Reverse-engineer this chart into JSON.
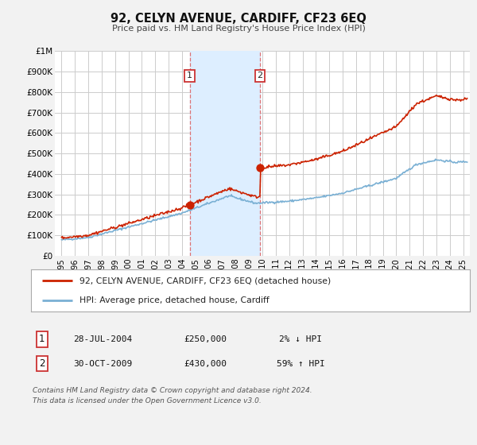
{
  "title": "92, CELYN AVENUE, CARDIFF, CF23 6EQ",
  "subtitle": "Price paid vs. HM Land Registry's House Price Index (HPI)",
  "bg_color": "#f2f2f2",
  "plot_bg_color": "#ffffff",
  "grid_color": "#cccccc",
  "hpi_line_color": "#7ab0d4",
  "price_line_color": "#cc2200",
  "marker_color": "#cc2200",
  "highlight_fill": "#ddeeff",
  "transaction1_x": 2004.57,
  "transaction1_y": 250000,
  "transaction2_x": 2009.83,
  "transaction2_y": 430000,
  "legend_line1": "92, CELYN AVENUE, CARDIFF, CF23 6EQ (detached house)",
  "legend_line2": "HPI: Average price, detached house, Cardiff",
  "table_row1": [
    "1",
    "28-JUL-2004",
    "£250,000",
    "2% ↓ HPI"
  ],
  "table_row2": [
    "2",
    "30-OCT-2009",
    "£430,000",
    "59% ↑ HPI"
  ],
  "footer": "Contains HM Land Registry data © Crown copyright and database right 2024.\nThis data is licensed under the Open Government Licence v3.0.",
  "ylim": [
    0,
    1000000
  ],
  "xlim_start": 1994.5,
  "xlim_end": 2025.5,
  "yticks": [
    0,
    100000,
    200000,
    300000,
    400000,
    500000,
    600000,
    700000,
    800000,
    900000,
    1000000
  ],
  "ytick_labels": [
    "£0",
    "£100K",
    "£200K",
    "£300K",
    "£400K",
    "£500K",
    "£600K",
    "£700K",
    "£800K",
    "£900K",
    "£1M"
  ],
  "xtick_years": [
    1995,
    1996,
    1997,
    1998,
    1999,
    2000,
    2001,
    2002,
    2003,
    2004,
    2005,
    2006,
    2007,
    2008,
    2009,
    2010,
    2011,
    2012,
    2013,
    2014,
    2015,
    2016,
    2017,
    2018,
    2019,
    2020,
    2021,
    2022,
    2023,
    2024,
    2025
  ]
}
